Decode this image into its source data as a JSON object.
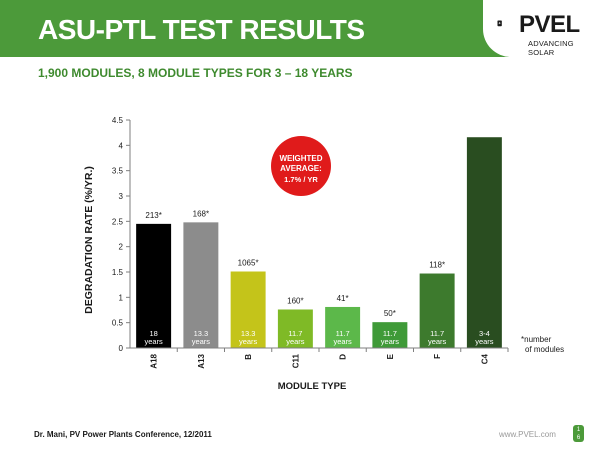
{
  "header": {
    "title": "ASU-PTL TEST RESULTS",
    "logo_text": "PVEL",
    "logo_subtext": "ADVANCING SOLAR"
  },
  "subtitle": "1,900 MODULES, 8 MODULE TYPES FOR 3 – 18 YEARS",
  "colors": {
    "header_green": "#4c9a3a",
    "subtitle_green": "#3e8a2e",
    "callout_red": "#e01b1b"
  },
  "callout": {
    "lines": [
      "WEIGHTED",
      "AVERAGE:",
      "1.7% / YR"
    ]
  },
  "chart_data": {
    "type": "bar",
    "categories": [
      "A18",
      "A13",
      "B",
      "C11",
      "D",
      "E",
      "F",
      "C4"
    ],
    "values": [
      2.45,
      2.48,
      1.51,
      0.76,
      0.81,
      0.51,
      1.47,
      4.16
    ],
    "bar_colors": [
      "#000000",
      "#8c8c8c",
      "#c4c41a",
      "#7fba26",
      "#5cb84a",
      "#3f9a38",
      "#3d7a2d",
      "#294d20"
    ],
    "top_labels": [
      "213*",
      "168*",
      "1065*",
      "160*",
      "41*",
      "50*",
      "118*",
      ""
    ],
    "bottom_labels": [
      [
        "18",
        "years"
      ],
      [
        "13.3",
        "years"
      ],
      [
        "13.3",
        "years"
      ],
      [
        "11.7",
        "years"
      ],
      [
        "11.7",
        "years"
      ],
      [
        "11.7",
        "years"
      ],
      [
        "11.7",
        "years"
      ],
      [
        "3-4",
        "years"
      ]
    ],
    "xlabel": "MODULE TYPE",
    "ylabel": "DEGRADATION RATE (%/YR.)",
    "ylim": [
      0,
      4.5
    ],
    "yticks": [
      0,
      0.5,
      1,
      1.5,
      2,
      2.5,
      3,
      3.5,
      4,
      4.5
    ],
    "ytick_labels": [
      "0",
      "0.5",
      "1",
      "1.5",
      "2",
      "2.5",
      "3",
      "3.5",
      "4",
      "4.5"
    ],
    "grid": false,
    "note": [
      "*number",
      "of modules"
    ]
  },
  "footer": {
    "citation": "Dr. Mani, PV Power Plants Conference, 12/2011",
    "url": "www.PVEL.com",
    "page": [
      "1",
      "6"
    ]
  }
}
